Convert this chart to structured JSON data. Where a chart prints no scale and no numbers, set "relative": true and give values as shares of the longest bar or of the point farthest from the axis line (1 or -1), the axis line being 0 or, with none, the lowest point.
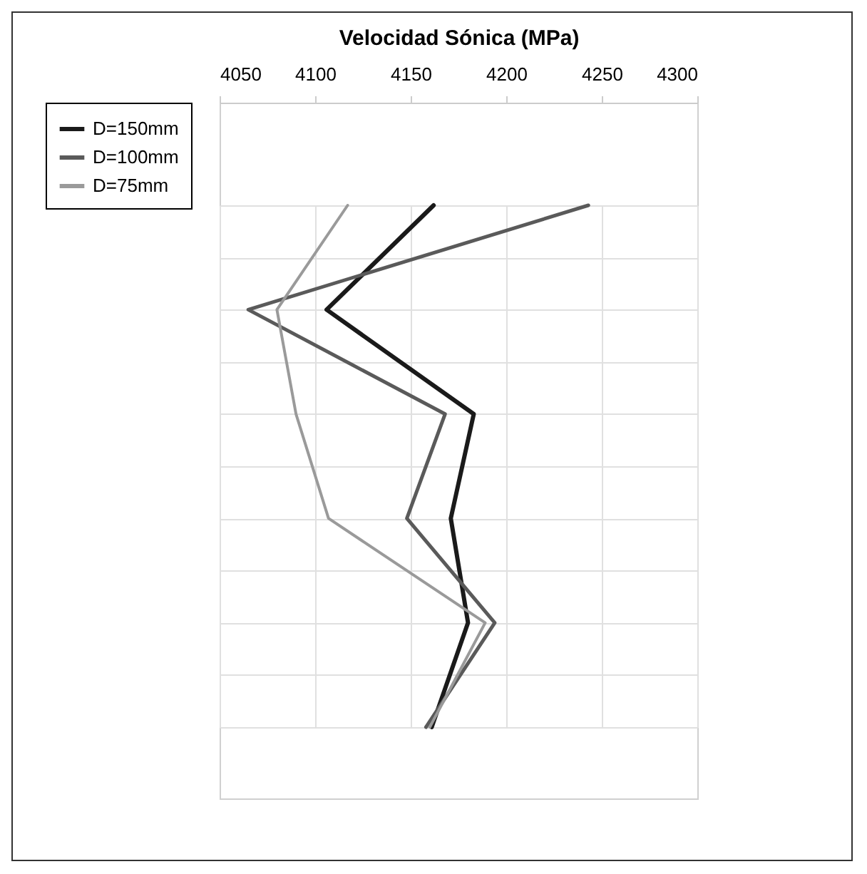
{
  "chart_data": {
    "type": "line",
    "relative": true,
    "xlabel": "Velocidad Sónica (MPa)",
    "series": [
      {
        "name": "D=150mm",
        "color": "#1a1a1a",
        "x": [
          4162,
          4106,
          4183,
          4171,
          4180,
          4161
        ],
        "values": [
          1,
          0.8,
          0.6,
          0.4,
          0.2,
          0
        ]
      },
      {
        "name": "D=100mm",
        "color": "#5a5a5a",
        "x": [
          4243,
          4065,
          4168,
          4148,
          4194,
          4158
        ],
        "values": [
          1,
          0.8,
          0.6,
          0.4,
          0.2,
          0
        ]
      },
      {
        "name": "D=75mm",
        "color": "#9a9a9a",
        "x": [
          4117,
          4080,
          4090,
          4107,
          4189,
          4160
        ],
        "values": [
          1,
          0.8,
          0.6,
          0.4,
          0.2,
          0
        ]
      }
    ],
    "xlim": [
      4050,
      4300
    ],
    "xticks": [
      4050,
      4100,
      4150,
      4200,
      4250,
      4300
    ],
    "grid": true,
    "legend": "left",
    "line_style": "solid"
  }
}
